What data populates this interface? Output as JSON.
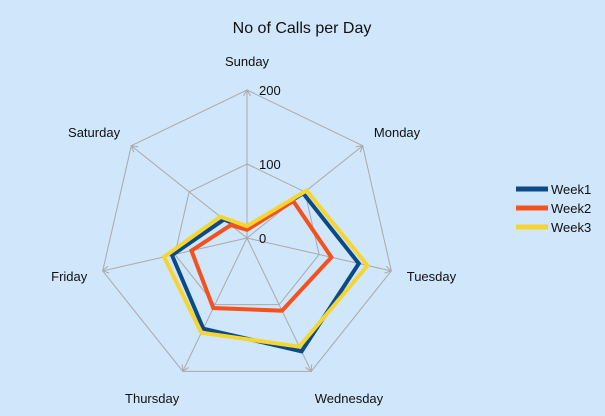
{
  "chart_data": {
    "type": "radar",
    "title": "No of Calls per Day",
    "categories": [
      "Sunday",
      "Monday",
      "Tuesday",
      "Wednesday",
      "Thursday",
      "Friday",
      "Saturday"
    ],
    "rmax": 200,
    "ticks": [
      0,
      100,
      200
    ],
    "grid": true,
    "legend_position": "right",
    "series": [
      {
        "name": "Week1",
        "color": "#0b4a86",
        "values": [
          13,
          97,
          155,
          170,
          136,
          104,
          40
        ]
      },
      {
        "name": "Week2",
        "color": "#f4511e",
        "values": [
          11,
          80,
          117,
          109,
          105,
          77,
          28
        ]
      },
      {
        "name": "Week3",
        "color": "#f6d531",
        "values": [
          16,
          103,
          167,
          163,
          142,
          115,
          46
        ]
      }
    ]
  }
}
